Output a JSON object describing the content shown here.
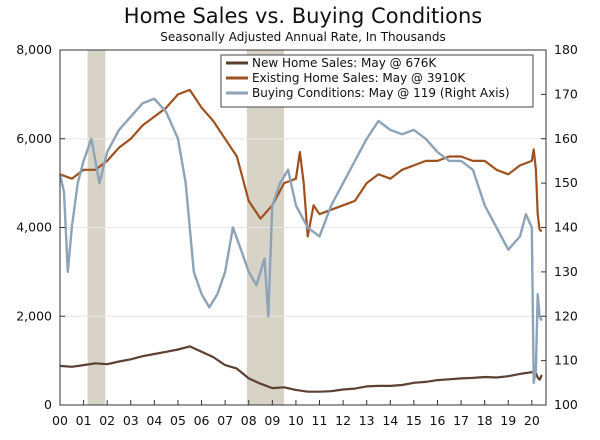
{
  "chart_data": {
    "type": "line",
    "title": "Home Sales vs. Buying Conditions",
    "subtitle": "Seasonally Adjusted Annual Rate, In Thousands",
    "y_left": {
      "min": 0,
      "max": 8000,
      "ticks": [
        "0",
        "2,000",
        "4,000",
        "6,000",
        "8,000"
      ],
      "tick_values": [
        0,
        2000,
        4000,
        6000,
        8000
      ]
    },
    "y_right": {
      "min": 100,
      "max": 180,
      "ticks": [
        "100",
        "110",
        "120",
        "130",
        "140",
        "150",
        "160",
        "170",
        "180"
      ],
      "tick_values": [
        100,
        110,
        120,
        130,
        140,
        150,
        160,
        170,
        180
      ]
    },
    "x_range": [
      2000,
      2020.6
    ],
    "x_ticks": [
      "00",
      "01",
      "02",
      "03",
      "04",
      "05",
      "06",
      "07",
      "08",
      "09",
      "10",
      "11",
      "12",
      "13",
      "14",
      "15",
      "16",
      "17",
      "18",
      "19",
      "20"
    ],
    "x_tick_values": [
      2000,
      2001,
      2002,
      2003,
      2004,
      2005,
      2006,
      2007,
      2008,
      2009,
      2010,
      2011,
      2012,
      2013,
      2014,
      2015,
      2016,
      2017,
      2018,
      2019,
      2020
    ],
    "recessions": [
      [
        2001.17,
        2001.92
      ],
      [
        2007.92,
        2009.5
      ]
    ],
    "legend": [
      {
        "label": "New Home Sales: May @ 676K",
        "color": "#5c4033"
      },
      {
        "label": "Existing Home Sales: May @ 3910K",
        "color": "#a0501e"
      },
      {
        "label": "Buying Conditions: May @ 119 (Right Axis)",
        "color": "#8ca3b8"
      }
    ],
    "series": [
      {
        "name": "New Home Sales",
        "axis": "left",
        "color": "#5c4033",
        "x": [
          2000,
          2000.5,
          2001,
          2001.5,
          2002,
          2002.5,
          2003,
          2003.5,
          2004,
          2004.5,
          2005,
          2005.5,
          2006,
          2006.5,
          2007,
          2007.5,
          2008,
          2008.5,
          2009,
          2009.5,
          2010,
          2010.5,
          2011,
          2011.5,
          2012,
          2012.5,
          2013,
          2013.5,
          2014,
          2014.5,
          2015,
          2015.5,
          2016,
          2016.5,
          2017,
          2017.5,
          2018,
          2018.5,
          2019,
          2019.5,
          2020,
          2020.17,
          2020.25,
          2020.33,
          2020.42
        ],
        "values": [
          880,
          860,
          900,
          940,
          920,
          980,
          1030,
          1100,
          1150,
          1200,
          1250,
          1320,
          1200,
          1080,
          900,
          820,
          600,
          480,
          380,
          400,
          340,
          300,
          300,
          310,
          350,
          370,
          420,
          430,
          430,
          450,
          500,
          520,
          560,
          580,
          600,
          610,
          630,
          620,
          650,
          700,
          740,
          720,
          620,
          570,
          676
        ]
      },
      {
        "name": "Existing Home Sales",
        "axis": "left",
        "color": "#a0501e",
        "x": [
          2000,
          2000.5,
          2001,
          2001.5,
          2002,
          2002.5,
          2003,
          2003.5,
          2004,
          2004.5,
          2005,
          2005.5,
          2006,
          2006.5,
          2007,
          2007.5,
          2008,
          2008.5,
          2009,
          2009.5,
          2010,
          2010.17,
          2010.33,
          2010.5,
          2010.75,
          2011,
          2011.5,
          2012,
          2012.5,
          2013,
          2013.5,
          2014,
          2014.5,
          2015,
          2015.5,
          2016,
          2016.5,
          2017,
          2017.5,
          2018,
          2018.5,
          2019,
          2019.5,
          2020,
          2020.08,
          2020.17,
          2020.25,
          2020.33,
          2020.42
        ],
        "values": [
          5200,
          5100,
          5300,
          5300,
          5500,
          5800,
          6000,
          6300,
          6500,
          6700,
          7000,
          7100,
          6700,
          6400,
          6000,
          5600,
          4600,
          4200,
          4500,
          5000,
          5100,
          5700,
          5000,
          3800,
          4500,
          4300,
          4400,
          4500,
          4600,
          5000,
          5200,
          5100,
          5300,
          5400,
          5500,
          5500,
          5600,
          5600,
          5500,
          5500,
          5300,
          5200,
          5400,
          5500,
          5760,
          5300,
          4300,
          3950,
          3910
        ]
      },
      {
        "name": "Buying Conditions",
        "axis": "right",
        "color": "#8ca3b8",
        "x": [
          2000,
          2000.17,
          2000.33,
          2000.5,
          2000.75,
          2001,
          2001.33,
          2001.67,
          2002,
          2002.5,
          2003,
          2003.5,
          2004,
          2004.5,
          2005,
          2005.33,
          2005.67,
          2006,
          2006.33,
          2006.67,
          2007,
          2007.33,
          2007.67,
          2008,
          2008.33,
          2008.67,
          2008.83,
          2009,
          2009.33,
          2009.67,
          2010,
          2010.5,
          2011,
          2011.5,
          2012,
          2012.5,
          2013,
          2013.5,
          2014,
          2014.5,
          2015,
          2015.5,
          2016,
          2016.5,
          2017,
          2017.5,
          2018,
          2018.5,
          2019,
          2019.5,
          2019.75,
          2020,
          2020.08,
          2020.17,
          2020.25,
          2020.33,
          2020.42
        ],
        "values": [
          152,
          148,
          130,
          140,
          150,
          155,
          160,
          150,
          157,
          162,
          165,
          168,
          169,
          166,
          160,
          150,
          130,
          125,
          122,
          125,
          130,
          140,
          135,
          130,
          127,
          133,
          120,
          145,
          150,
          153,
          145,
          140,
          138,
          145,
          150,
          155,
          160,
          164,
          162,
          161,
          162,
          160,
          157,
          155,
          155,
          153,
          145,
          140,
          135,
          138,
          143,
          140,
          105,
          108,
          125,
          120,
          119
        ]
      }
    ]
  }
}
